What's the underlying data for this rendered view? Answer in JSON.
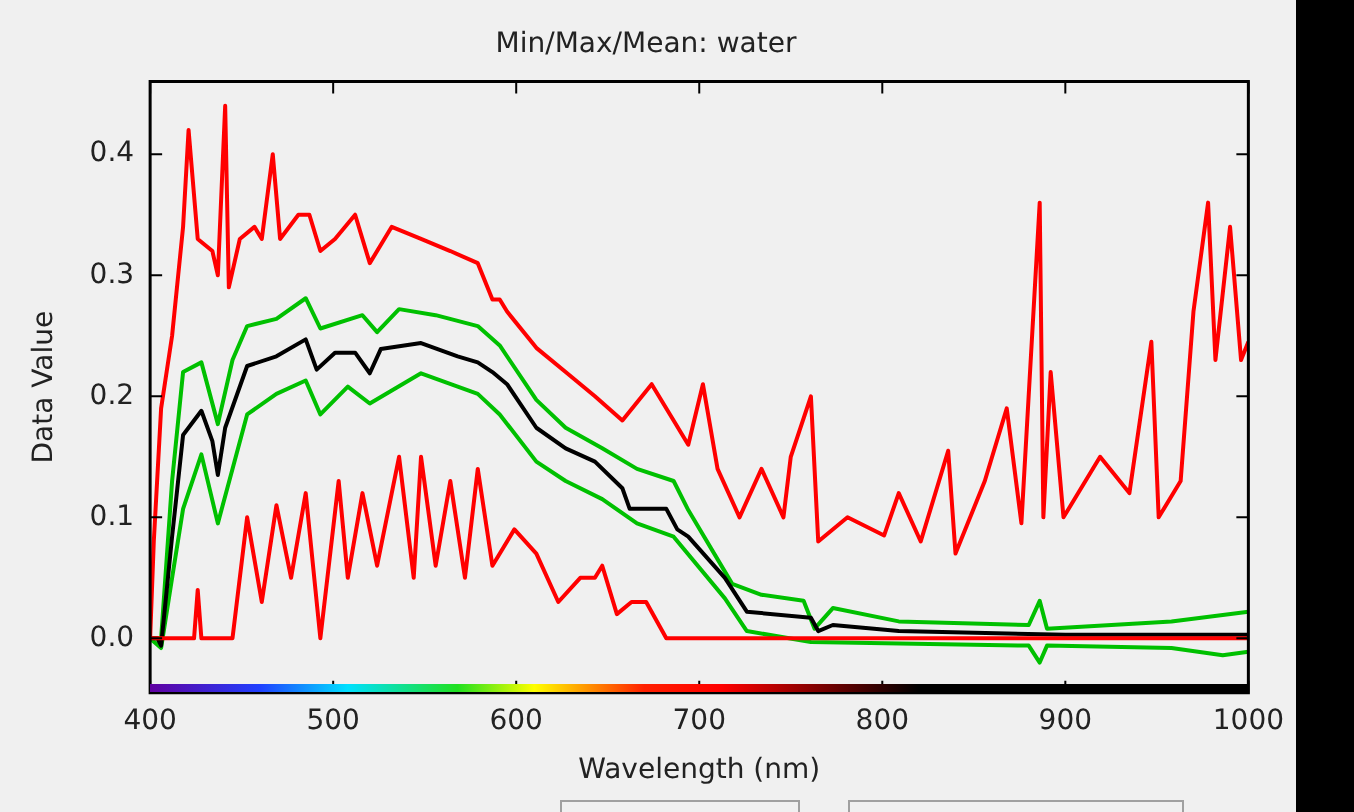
{
  "chart_data": {
    "type": "line",
    "title": "Min/Max/Mean: water",
    "xlabel": "Wavelength (nm)",
    "ylabel": "Data Value",
    "xlim": [
      400,
      1000
    ],
    "xticks": [
      400,
      500,
      600,
      700,
      800,
      900,
      1000
    ],
    "ylim": [
      -0.045,
      0.46
    ],
    "yticks": [
      {
        "value": 0,
        "label": "0.0"
      },
      {
        "value": 0.1,
        "label": "0.1"
      },
      {
        "value": 0.2,
        "label": "0.2"
      },
      {
        "value": 0.3,
        "label": "0.3"
      },
      {
        "value": 0.4,
        "label": "0.4"
      }
    ],
    "grid": false,
    "legend": false,
    "marker": "none",
    "line_style": "solid",
    "series": [
      {
        "color": "#ff0000",
        "x": [
          400,
          402,
          406,
          412,
          418,
          421,
          426,
          434,
          437,
          441,
          443,
          449,
          457,
          461,
          467,
          471,
          481,
          487,
          493,
          501,
          512,
          520,
          532,
          548,
          564,
          579,
          587,
          591,
          595,
          611,
          627,
          643,
          658,
          674,
          686,
          694,
          702,
          710,
          722,
          734,
          746,
          750,
          761,
          765,
          781,
          801,
          809,
          821,
          836,
          840,
          856,
          868,
          876,
          886,
          888,
          892,
          899,
          919,
          935,
          947,
          951,
          963,
          970,
          978,
          982,
          990,
          996,
          1000
        ],
        "values": [
          0,
          0.08,
          0.19,
          0.25,
          0.34,
          0.42,
          0.33,
          0.32,
          0.3,
          0.44,
          0.29,
          0.33,
          0.34,
          0.33,
          0.4,
          0.33,
          0.35,
          0.35,
          0.32,
          0.33,
          0.35,
          0.31,
          0.34,
          0.33,
          0.32,
          0.31,
          0.28,
          0.28,
          0.27,
          0.24,
          0.22,
          0.2,
          0.18,
          0.21,
          0.18,
          0.16,
          0.21,
          0.14,
          0.1,
          0.14,
          0.1,
          0.15,
          0.2,
          0.08,
          0.1,
          0.085,
          0.12,
          0.08,
          0.155,
          0.07,
          0.13,
          0.19,
          0.095,
          0.36,
          0.1,
          0.22,
          0.1,
          0.15,
          0.12,
          0.245,
          0.1,
          0.13,
          0.27,
          0.36,
          0.23,
          0.34,
          0.23,
          0.245
        ]
      },
      {
        "color": "#ff0000",
        "x": [
          400,
          424,
          426,
          428,
          445,
          453,
          461,
          469,
          477,
          485,
          493,
          503,
          508,
          516,
          524,
          536,
          544,
          548,
          556,
          564,
          572,
          579,
          587,
          599,
          611,
          623,
          635,
          643,
          647,
          655,
          663,
          671,
          682,
          1000
        ],
        "values": [
          0,
          0,
          0.04,
          0,
          0,
          0.1,
          0.03,
          0.11,
          0.05,
          0.12,
          0,
          0.13,
          0.05,
          0.12,
          0.06,
          0.15,
          0.05,
          0.15,
          0.06,
          0.13,
          0.05,
          0.14,
          0.06,
          0.09,
          0.07,
          0.03,
          0.05,
          0.05,
          0.06,
          0.02,
          0.03,
          0.03,
          0,
          0
        ]
      },
      {
        "color": "#000000",
        "x": [
          400,
          404,
          406,
          412,
          418,
          428,
          434,
          437,
          441,
          453,
          469,
          485,
          491,
          501,
          512,
          520,
          526,
          548,
          568,
          579,
          587,
          595,
          611,
          627,
          643,
          658,
          662,
          682,
          688,
          694,
          714,
          726,
          761,
          765,
          773,
          809,
          900,
          1000
        ],
        "values": [
          0,
          0,
          -0.006,
          0.084,
          0.168,
          0.188,
          0.163,
          0.135,
          0.174,
          0.225,
          0.233,
          0.247,
          0.222,
          0.236,
          0.236,
          0.219,
          0.239,
          0.244,
          0.233,
          0.228,
          0.22,
          0.21,
          0.174,
          0.157,
          0.146,
          0.124,
          0.107,
          0.107,
          0.09,
          0.084,
          0.05,
          0.022,
          0.017,
          0.006,
          0.011,
          0.006,
          0.003,
          0.003
        ]
      },
      {
        "color": "#00c000",
        "x": [
          400,
          406,
          412,
          418,
          428,
          437,
          445,
          453,
          469,
          485,
          493,
          516,
          524,
          536,
          556,
          579,
          591,
          611,
          627,
          647,
          666,
          686,
          694,
          718,
          734,
          757,
          763,
          773,
          809,
          880,
          886,
          890,
          958,
          1000
        ],
        "values": [
          0,
          0,
          0.13,
          0.22,
          0.228,
          0.177,
          0.23,
          0.258,
          0.264,
          0.281,
          0.256,
          0.267,
          0.253,
          0.272,
          0.267,
          0.258,
          0.242,
          0.197,
          0.174,
          0.157,
          0.14,
          0.13,
          0.106,
          0.045,
          0.036,
          0.031,
          0.008,
          0.025,
          0.014,
          0.011,
          0.031,
          0.008,
          0.014,
          0.022
        ]
      },
      {
        "color": "#00c000",
        "x": [
          400,
          406,
          412,
          418,
          428,
          437,
          445,
          453,
          469,
          485,
          493,
          508,
          520,
          548,
          579,
          591,
          611,
          627,
          647,
          666,
          686,
          714,
          726,
          761,
          880,
          886,
          890,
          958,
          986,
          1000
        ],
        "values": [
          0,
          -0.008,
          0.05,
          0.107,
          0.152,
          0.095,
          0.14,
          0.185,
          0.202,
          0.213,
          0.185,
          0.208,
          0.194,
          0.219,
          0.202,
          0.185,
          0.146,
          0.13,
          0.115,
          0.095,
          0.084,
          0.033,
          0.006,
          -0.003,
          -0.006,
          -0.02,
          -0.006,
          -0.008,
          -0.014,
          -0.011
        ]
      }
    ]
  }
}
